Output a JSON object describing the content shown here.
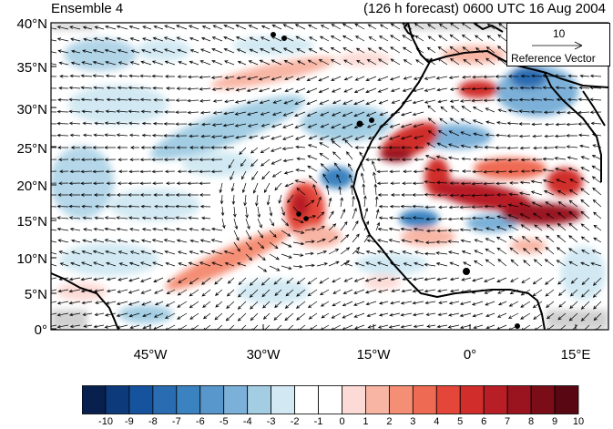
{
  "titles": {
    "left": "Ensemble 4",
    "right": "(126 h forecast) 0600 UTC 16 Aug 2004"
  },
  "latitude_labels": [
    "40°N",
    "35°N",
    "30°N",
    "25°N",
    "20°N",
    "15°N",
    "10°N",
    "5°N",
    "0°"
  ],
  "longitude_labels": [
    "45°W",
    "30°W",
    "15°W",
    "0°",
    "15°E"
  ],
  "reference_vector": {
    "magnitude": "10",
    "label": "Reference Vector"
  },
  "colorbar": {
    "tick_labels": [
      "-10",
      "-9",
      "-8",
      "-7",
      "-6",
      "-5",
      "-4",
      "-3",
      "-2",
      "-1",
      "0",
      "1",
      "2",
      "3",
      "4",
      "5",
      "6",
      "7",
      "8",
      "9",
      "10"
    ],
    "colors": [
      "#08204e",
      "#0c3a7a",
      "#15539e",
      "#2a6cb1",
      "#3b82c0",
      "#5797cb",
      "#7bb0d8",
      "#a3cde3",
      "#d2e9f3",
      "#ffffff",
      "#ffffff",
      "#fcdad5",
      "#f8b5a4",
      "#f48e75",
      "#ee6a52",
      "#e4463a",
      "#d02d2b",
      "#b81e25",
      "#9a1420",
      "#7a0d18",
      "#590813"
    ]
  },
  "map_colors": {
    "ocean": "#ffffff",
    "coast": "#000000",
    "missing": "#d0d0d0"
  }
}
